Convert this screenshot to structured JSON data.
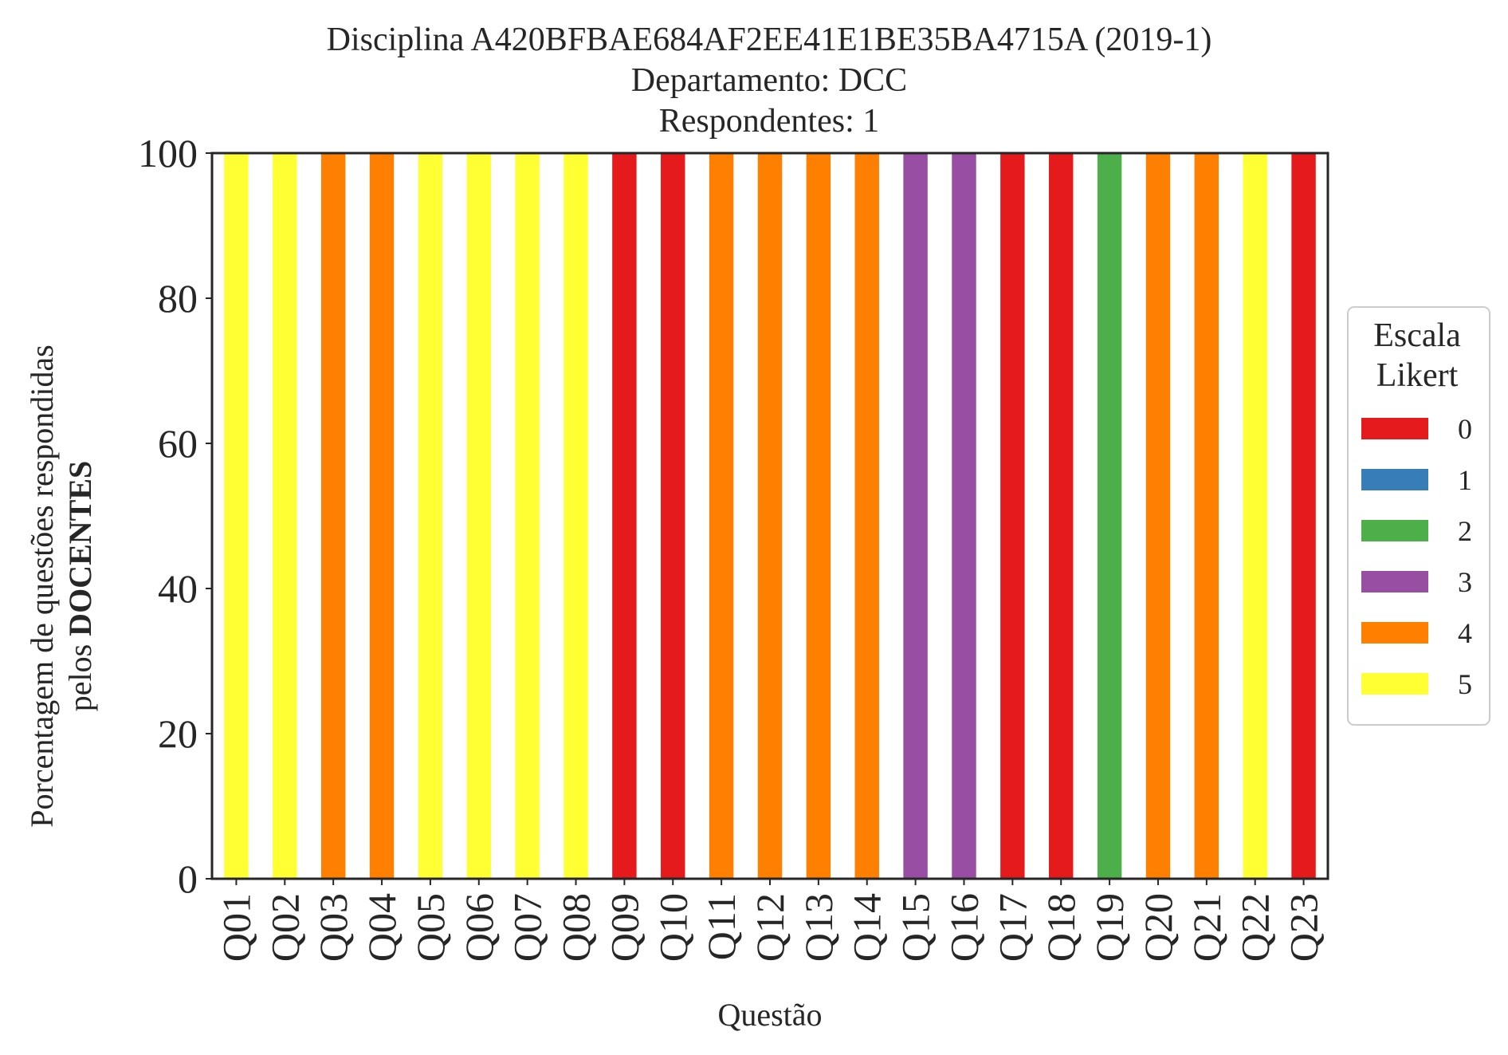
{
  "chart_data": {
    "type": "bar",
    "stacked": true,
    "title": "Disciplina A420BFBAE684AF2EE41E1BE35BA4715A (2019-1)",
    "subtitle_lines": [
      "Departamento: DCC",
      "Respondentes: 1"
    ],
    "xlabel": "Questão",
    "ylabel_line1": "Porcentagem de questões respondidas",
    "ylabel_line2_prefix": "pelos ",
    "ylabel_line2_bold": "DOCENTES",
    "ylim": [
      0,
      100
    ],
    "yticks": [
      "0",
      "20",
      "40",
      "60",
      "80",
      "100"
    ],
    "grid": false,
    "legend_position": "right",
    "legend_title_lines": [
      "Escala",
      "Likert"
    ],
    "categories": [
      "Q01",
      "Q02",
      "Q03",
      "Q04",
      "Q05",
      "Q06",
      "Q07",
      "Q08",
      "Q09",
      "Q10",
      "Q11",
      "Q12",
      "Q13",
      "Q14",
      "Q15",
      "Q16",
      "Q17",
      "Q18",
      "Q19",
      "Q20",
      "Q21",
      "Q22",
      "Q23"
    ],
    "series": [
      {
        "name": "0",
        "color": "#e41a1c",
        "values": [
          0,
          0,
          0,
          0,
          0,
          0,
          0,
          0,
          100,
          100,
          0,
          0,
          0,
          0,
          0,
          0,
          100,
          100,
          0,
          0,
          0,
          0,
          100
        ]
      },
      {
        "name": "1",
        "color": "#377eb8",
        "values": [
          0,
          0,
          0,
          0,
          0,
          0,
          0,
          0,
          0,
          0,
          0,
          0,
          0,
          0,
          0,
          0,
          0,
          0,
          0,
          0,
          0,
          0,
          0
        ]
      },
      {
        "name": "2",
        "color": "#4daf4a",
        "values": [
          0,
          0,
          0,
          0,
          0,
          0,
          0,
          0,
          0,
          0,
          0,
          0,
          0,
          0,
          0,
          0,
          0,
          0,
          100,
          0,
          0,
          0,
          0
        ]
      },
      {
        "name": "3",
        "color": "#984ea3",
        "values": [
          0,
          0,
          0,
          0,
          0,
          0,
          0,
          0,
          0,
          0,
          0,
          0,
          0,
          0,
          100,
          100,
          0,
          0,
          0,
          0,
          0,
          0,
          0
        ]
      },
      {
        "name": "4",
        "color": "#ff7f00",
        "values": [
          0,
          0,
          100,
          100,
          0,
          0,
          0,
          0,
          0,
          0,
          100,
          100,
          100,
          100,
          0,
          0,
          0,
          0,
          0,
          100,
          100,
          0,
          0
        ]
      },
      {
        "name": "5",
        "color": "#ffff33",
        "values": [
          100,
          100,
          0,
          0,
          100,
          100,
          100,
          100,
          0,
          0,
          0,
          0,
          0,
          0,
          0,
          0,
          0,
          0,
          0,
          0,
          0,
          100,
          0
        ]
      }
    ]
  }
}
